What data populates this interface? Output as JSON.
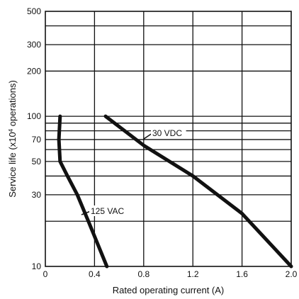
{
  "chart_data": {
    "type": "line",
    "xlabel": "Rated operating current (A)",
    "ylabel_prefix": "Service life (x10",
    "ylabel_exp": "4",
    "ylabel_suffix": " operations)",
    "x_scale": "linear",
    "y_scale": "log",
    "xlim": [
      0,
      2.0
    ],
    "ylim": [
      10,
      500
    ],
    "x_ticks": [
      {
        "value": 0,
        "label": "0"
      },
      {
        "value": 0.4,
        "label": "0.4"
      },
      {
        "value": 0.8,
        "label": "0.8"
      },
      {
        "value": 1.2,
        "label": "1.2"
      },
      {
        "value": 1.6,
        "label": "1.6"
      },
      {
        "value": 2.0,
        "label": "2.0"
      }
    ],
    "y_ticks": [
      {
        "value": 10,
        "label": "10"
      },
      {
        "value": 30,
        "label": "30"
      },
      {
        "value": 50,
        "label": "50"
      },
      {
        "value": 70,
        "label": "70"
      },
      {
        "value": 100,
        "label": "100"
      },
      {
        "value": 200,
        "label": "200"
      },
      {
        "value": 300,
        "label": "300"
      },
      {
        "value": 500,
        "label": "500"
      }
    ],
    "x_grid": [
      0.4,
      0.8,
      1.2,
      1.6
    ],
    "y_grid": [
      20,
      30,
      40,
      50,
      60,
      70,
      80,
      90,
      100,
      200,
      300,
      400
    ],
    "grid": true,
    "series": [
      {
        "name": "125 VAC",
        "points": [
          [
            0.12,
            100
          ],
          [
            0.11,
            70
          ],
          [
            0.12,
            50
          ],
          [
            0.18,
            40
          ],
          [
            0.26,
            30
          ],
          [
            0.35,
            20
          ],
          [
            0.5,
            10
          ]
        ]
      },
      {
        "name": "30 VDC",
        "points": [
          [
            0.49,
            100
          ],
          [
            0.8,
            64
          ],
          [
            1.2,
            40
          ],
          [
            1.6,
            22.5
          ],
          [
            2.0,
            10
          ]
        ]
      }
    ]
  }
}
